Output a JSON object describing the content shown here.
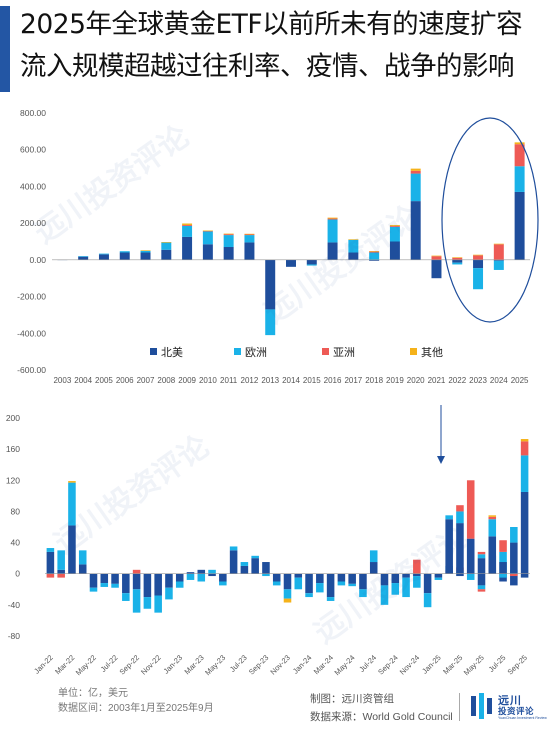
{
  "title": {
    "line1": "2025年全球黄金ETF以前所未有的速度扩容",
    "line2": "流入规模超越过往利率、疫情、战争的影响"
  },
  "footer": {
    "unit": "单位：亿，美元",
    "range": "数据区间：2003年1月至2025年9月",
    "made_by": "制图：远川资管组",
    "source_label": "数据来源：",
    "source": "World Gold Council"
  },
  "brand": {
    "name": "远川",
    "sub": "投资评论",
    "tagline": "YuanChuan Investment Review"
  },
  "colors": {
    "north_america": "#1f4e9c",
    "europe": "#1ab2e8",
    "asia": "#ee5a55",
    "other": "#f5b21a",
    "accent": "#2356a4"
  },
  "chart_data": [
    {
      "type": "bar",
      "stacked": true,
      "yticks": [
        "800.00",
        "600.00",
        "400.00",
        "200.00",
        "0.00",
        "-200.00",
        "-400.00",
        "-600.00"
      ],
      "ylim": [
        -600,
        800
      ],
      "grid": false,
      "legend_position": "bottom-center",
      "categories": [
        "2003",
        "2004",
        "2005",
        "2006",
        "2007",
        "2008",
        "2009",
        "2010",
        "2011",
        "2012",
        "2013",
        "2014",
        "2015",
        "2016",
        "2017",
        "2018",
        "2019",
        "2020",
        "2021",
        "2022",
        "2023",
        "2024",
        "2025"
      ],
      "series": [
        {
          "name": "北美",
          "values": [
            2,
            18,
            30,
            40,
            40,
            55,
            125,
            85,
            70,
            95,
            -270,
            -38,
            -25,
            95,
            40,
            -5,
            100,
            320,
            -100,
            -15,
            -45,
            -5,
            370
          ]
        },
        {
          "name": "欧洲",
          "values": [
            0,
            2,
            4,
            7,
            10,
            40,
            60,
            70,
            65,
            40,
            -140,
            0,
            -6,
            125,
            70,
            40,
            80,
            150,
            0,
            -10,
            -115,
            -50,
            140
          ]
        },
        {
          "name": "亚洲",
          "values": [
            0,
            0,
            0,
            0,
            0,
            0,
            5,
            3,
            5,
            5,
            0,
            0,
            0,
            5,
            0,
            5,
            5,
            15,
            20,
            12,
            25,
            85,
            120
          ]
        },
        {
          "name": "其他",
          "values": [
            0,
            0,
            0,
            0,
            2,
            2,
            8,
            2,
            3,
            2,
            0,
            0,
            0,
            5,
            2,
            3,
            5,
            12,
            3,
            2,
            3,
            3,
            10
          ]
        }
      ]
    },
    {
      "type": "bar",
      "stacked": true,
      "yticks": [
        "200",
        "160",
        "120",
        "80",
        "40",
        "0",
        "-40",
        "-80"
      ],
      "ylim": [
        -80,
        200
      ],
      "grid": false,
      "x_tick_labels": [
        "Jan-22",
        "Mar-22",
        "May-22",
        "Jul-22",
        "Sep-22",
        "Nov-22",
        "Jan-23",
        "Mar-23",
        "May-23",
        "Jul-23",
        "Sep-23",
        "Nov-23",
        "Jan-24",
        "Mar-24",
        "May-24",
        "Jul-24",
        "Sep-24",
        "Nov-24",
        "Jan-25",
        "Mar-25",
        "May-25",
        "Jul-25",
        "Sep-25"
      ],
      "months": 45,
      "series": [
        {
          "name": "北美",
          "values": [
            28,
            5,
            62,
            12,
            -18,
            -12,
            -13,
            -25,
            -20,
            -30,
            -28,
            -18,
            -10,
            2,
            5,
            -3,
            -10,
            30,
            10,
            20,
            15,
            -10,
            -20,
            -5,
            -25,
            -12,
            -30,
            -10,
            -13,
            -20,
            15,
            -15,
            -12,
            -5,
            -3,
            -25,
            -5,
            5,
            -3,
            30,
            20,
            8,
            -10,
            -15,
            -5
          ]
        },
        {
          "name": "欧洲",
          "values": [
            5,
            25,
            55,
            18,
            -5,
            -5,
            -5,
            -10,
            -30,
            -15,
            -22,
            -15,
            -8,
            -8,
            -10,
            5,
            -5,
            5,
            5,
            3,
            -3,
            -5,
            -12,
            -15,
            -5,
            -12,
            -5,
            -5,
            -3,
            -10,
            15,
            -25,
            -15,
            -25,
            -15,
            -18,
            -3,
            5,
            3,
            5,
            5,
            15,
            28,
            5,
            0
          ]
        },
        {
          "name": "亚洲",
          "values": [
            -5,
            -5,
            0,
            0,
            0,
            0,
            0,
            0,
            5,
            0,
            0,
            0,
            0,
            0,
            0,
            0,
            0,
            0,
            0,
            0,
            0,
            0,
            0,
            0,
            0,
            0,
            0,
            0,
            0,
            0,
            0,
            0,
            0,
            0,
            18,
            0,
            0,
            0,
            5,
            0,
            3,
            0,
            15,
            0,
            0
          ]
        },
        {
          "name": "其他",
          "values": [
            0,
            0,
            2,
            0,
            0,
            0,
            0,
            0,
            0,
            0,
            0,
            0,
            0,
            0,
            0,
            0,
            0,
            0,
            0,
            0,
            0,
            0,
            -5,
            0,
            0,
            0,
            0,
            0,
            0,
            0,
            0,
            0,
            0,
            0,
            0,
            0,
            0,
            0,
            0,
            0,
            0,
            0,
            0,
            0,
            0
          ]
        }
      ],
      "series_tail": [
        [
          0,
          0,
          0,
          0,
          0
        ],
        [
          0,
          0,
          0,
          0,
          0
        ],
        [
          0,
          0,
          0,
          0,
          0
        ],
        [
          0,
          0,
          0,
          0,
          0
        ]
      ]
    }
  ]
}
